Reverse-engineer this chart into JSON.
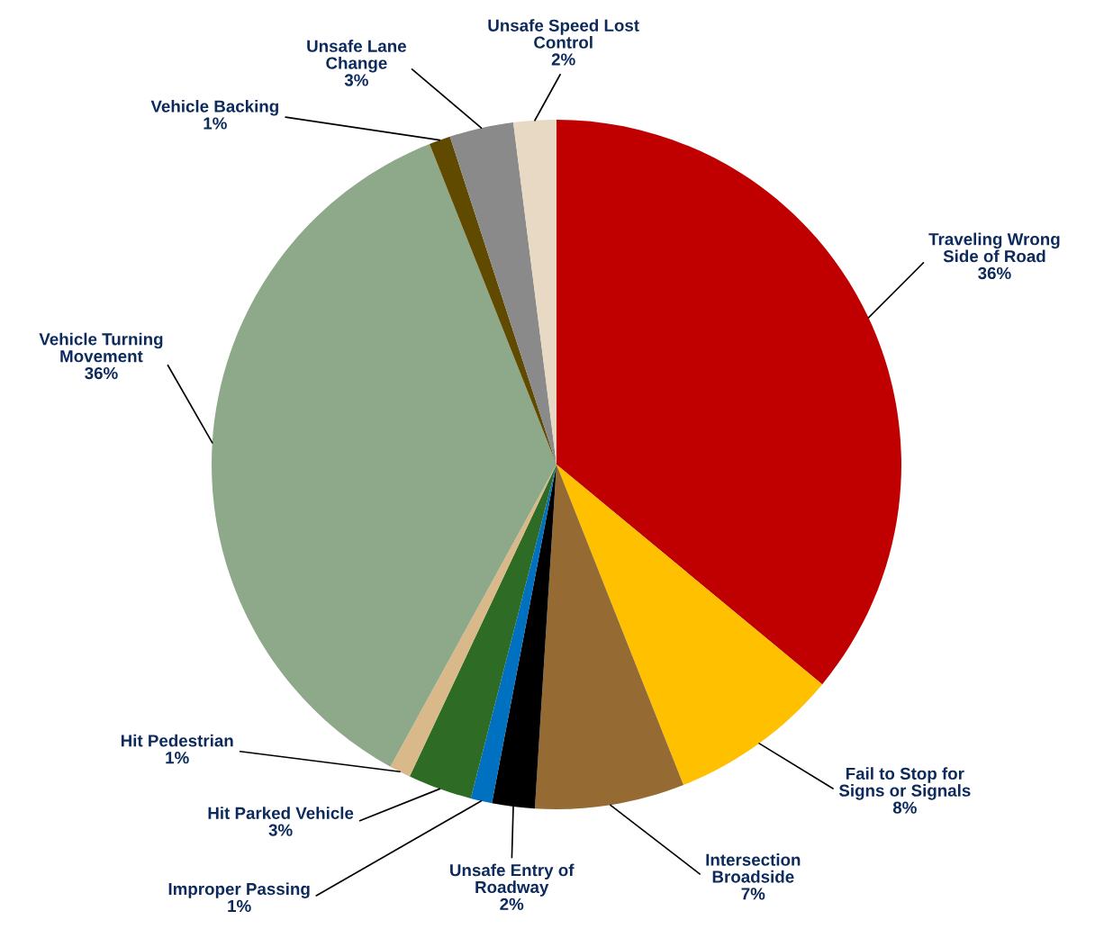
{
  "chart_data": {
    "type": "pie",
    "categories": [
      "Traveling Wrong\nSide of Road",
      "Fail to Stop for\nSigns or Signals",
      "Intersection\nBroadside",
      "Unsafe Entry of\nRoadway",
      "Improper Passing",
      "Hit Parked Vehicle",
      "Hit Pedestrian",
      "Vehicle Turning\nMovement",
      "Vehicle Backing",
      "Unsafe Lane\nChange",
      "Unsafe Speed Lost\nControl"
    ],
    "values": [
      36,
      8,
      7,
      2,
      1,
      3,
      1,
      36,
      1,
      3,
      2
    ],
    "value_labels": [
      "36%",
      "8%",
      "7%",
      "2%",
      "1%",
      "3%",
      "1%",
      "36%",
      "1%",
      "3%",
      "2%"
    ],
    "colors": [
      "#c00000",
      "#ffc000",
      "#956b33",
      "#000000",
      "#0070c0",
      "#2e6b25",
      "#d9b88a",
      "#8ea989",
      "#604a00",
      "#8a8a8a",
      "#e8d9c4"
    ],
    "legend": false
  }
}
